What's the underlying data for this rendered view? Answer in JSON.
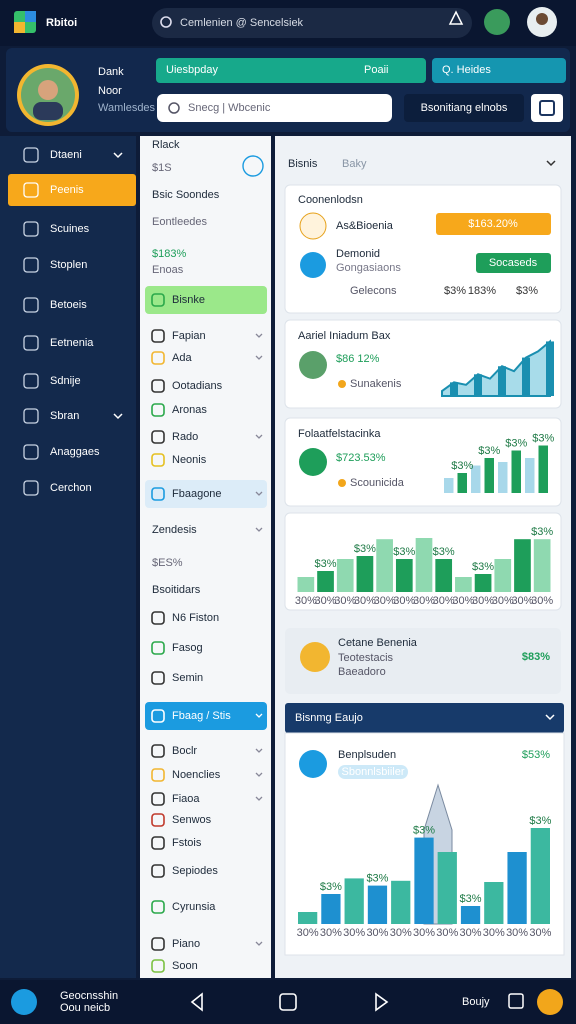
{
  "top_bar": {
    "app_name": "Rbitoi",
    "search": "Cemlenien @ Sencelsiek"
  },
  "profile": {
    "name_line1": "Dank",
    "name_line2": "Noor",
    "subtitle": "Wamlesdes"
  },
  "header": {
    "green_bar": "Uiesbpday",
    "green_bar_action": "Poaii",
    "teal_bar": "Q. Heides",
    "search_placeholder": "Snecg | Wbcenic",
    "button": "Bsonitiang elnobs"
  },
  "sidebar": {
    "items": [
      "Dtaeni",
      "Peenis",
      "Scuines",
      "Stoplen",
      "Betoeis",
      "Eetnenia",
      "Sdnije",
      "Sbran",
      "Anaggaes",
      "Cerchon"
    ]
  },
  "middle": {
    "items": [
      "Rlack",
      "$1S",
      "Bsic Soondes",
      "Eontleedes",
      "$183%",
      "Enoas",
      "Bisnke",
      "Fapian",
      "Ada",
      "Ootadians",
      "Aronas",
      "Rado",
      "Neonis",
      "Fbaagone",
      "Zendesis",
      "$ES%",
      "Bsoitidars",
      "N6 Fiston",
      "Fasog",
      "Semin",
      "Fbaag / Stis",
      "Boclr",
      "Noenclies",
      "Fiaoa",
      "Senwos",
      "Fstois",
      "Sepiodes",
      "Cyrunsia",
      "Piano",
      "Soon"
    ]
  },
  "panel": {
    "title": "Bisnis",
    "title_suffix": "Baky",
    "summary": {
      "title": "Coonenlodsn",
      "row1_label": "As&Bioenia",
      "row1_pill": "$163.20%",
      "row2_label": "Demonid",
      "row2_sub": "Gongasiaons",
      "row2_pill": "Socaseds",
      "footer": [
        "Gelecons",
        "$3%",
        "183%",
        "$3%"
      ]
    },
    "trend": {
      "title": "Aariel Iniadum Bax",
      "value": "$86 12%",
      "sub": "Sunakenis",
      "chart": {
        "type": "area",
        "values": [
          8,
          22,
          18,
          35,
          28,
          48,
          40,
          62,
          72,
          88
        ],
        "ylim": [
          0,
          100
        ],
        "color": "#1a8fb0"
      }
    },
    "growth": {
      "title": "Folaatfelstacinka",
      "value": "$723.53%",
      "sub": "Scounicida",
      "chart": {
        "type": "bar",
        "values": [
          30,
          40,
          55,
          70,
          62,
          85,
          70,
          95
        ],
        "ylim": [
          0,
          100
        ],
        "colors": [
          "#a8d8ea",
          "#1e9e5a"
        ],
        "labels": [
          "$3%",
          "$3%",
          "$3%",
          "$3%"
        ]
      }
    },
    "compare": {
      "chart": {
        "type": "bar",
        "values": [
          25,
          35,
          55,
          60,
          88,
          55,
          90,
          55,
          25,
          30,
          55,
          88,
          88
        ],
        "ylim": [
          0,
          100
        ],
        "colors": [
          "#8fd9b0",
          "#1e9e5a"
        ],
        "labels": [
          "$3%",
          "$3%",
          "$3%",
          "$3%",
          "$3%",
          "$3%"
        ],
        "x_labels": [
          "30%",
          "30%",
          "30%",
          "30%",
          "30%",
          "30%",
          "30%",
          "30%",
          "30%",
          "30%",
          "30%",
          "30%",
          "30%"
        ]
      }
    },
    "highlight": {
      "title": "Cetane Benenia",
      "sub1": "Teotestacis",
      "sub2": "Baeadoro",
      "value": "$83%"
    },
    "detail": {
      "header": "Bisnmg Eaujo",
      "title": "Benplsuden",
      "pill": "Sbonnlsbiiler",
      "value": "$53%",
      "chart": {
        "type": "bar",
        "values": [
          10,
          25,
          38,
          32,
          36,
          72,
          60,
          15,
          35,
          60,
          80
        ],
        "ylim": [
          0,
          100
        ],
        "colors": [
          "#3cb8a0",
          "#1e90d0"
        ],
        "labels": [
          "$3%",
          "$3%",
          "$3%",
          "$3%",
          "$3%"
        ],
        "x_labels": [
          "30%",
          "30%",
          "30%",
          "30%",
          "30%",
          "30%",
          "30%",
          "30%",
          "30%",
          "30%",
          "30%"
        ]
      }
    }
  },
  "bottom_bar": {
    "line1": "Geocnsshin",
    "line2": "Oou neicb",
    "right_text": "Boujy"
  }
}
